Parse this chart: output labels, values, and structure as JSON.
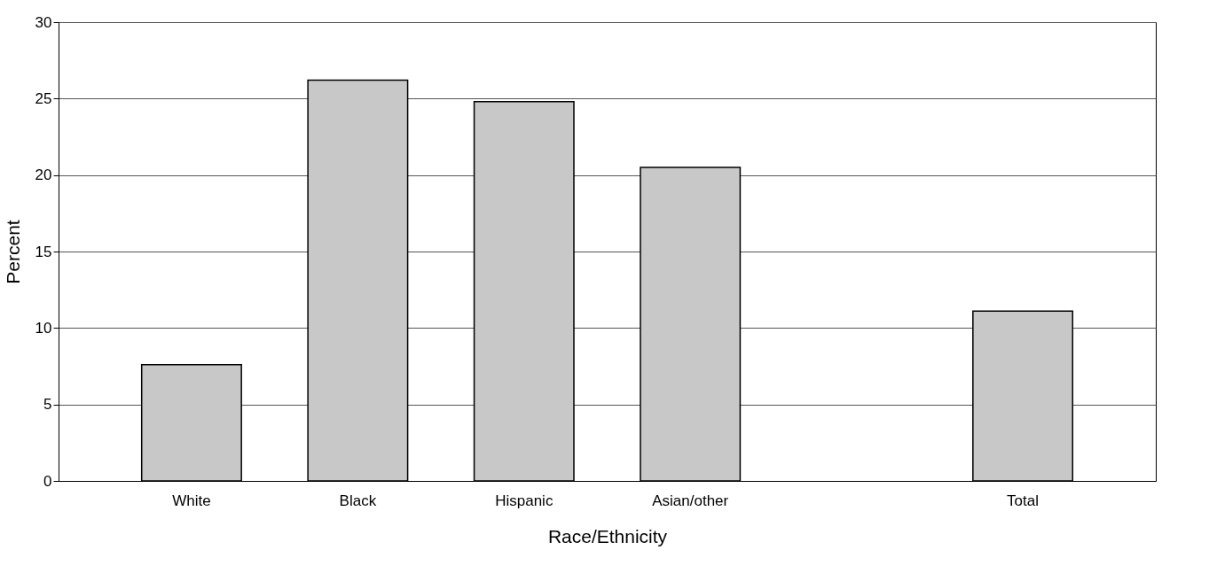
{
  "chart_data": {
    "type": "bar",
    "xlabel": "Race/Ethnicity",
    "ylabel": "Percent",
    "categories": [
      "White",
      "Black",
      "Hispanic",
      "Asian/other",
      null,
      "Total"
    ],
    "values": [
      7.6,
      26.2,
      24.8,
      20.5,
      null,
      11.1
    ],
    "color": "#c8c8c8",
    "ylim": [
      0,
      30
    ],
    "yticks": [
      0,
      5,
      10,
      15,
      20,
      25,
      30
    ],
    "grid": "y"
  }
}
